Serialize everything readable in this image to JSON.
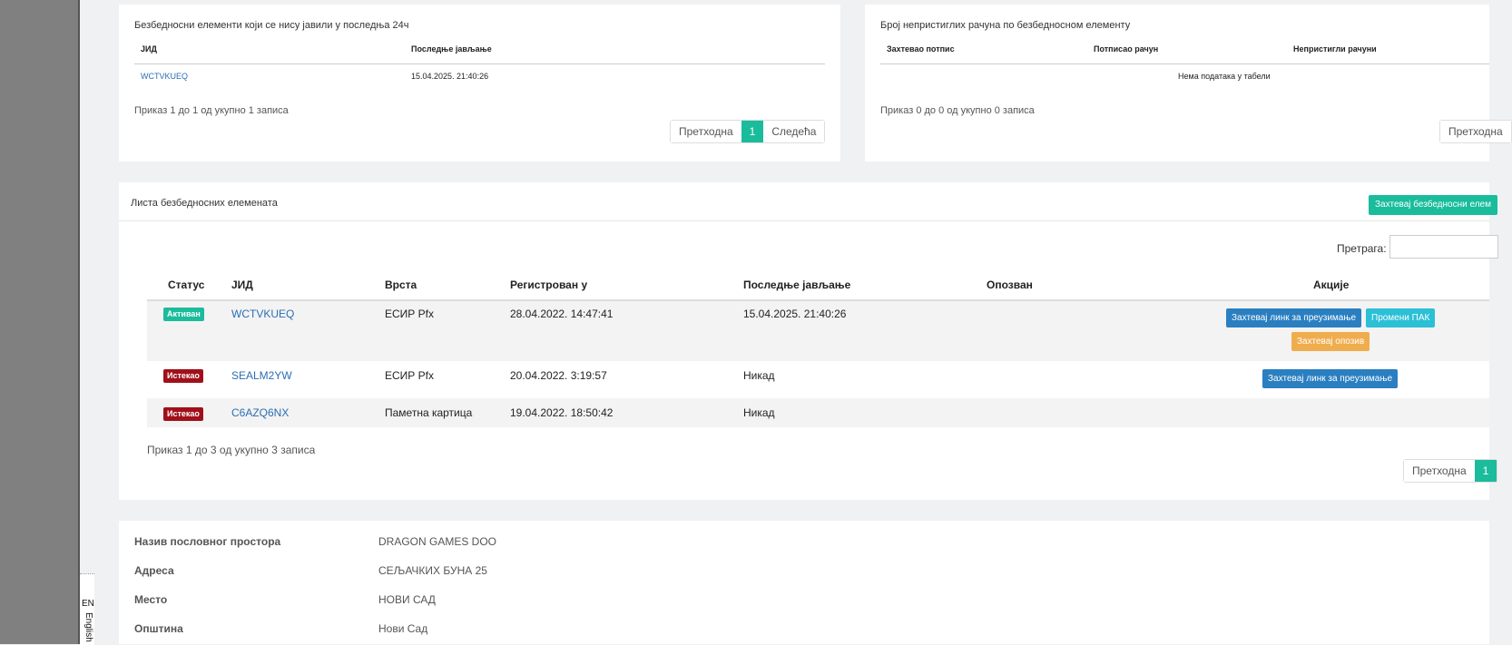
{
  "lang": {
    "code": "EN",
    "name": "English"
  },
  "silent_elements": {
    "title": "Безбедносни елементи који се нису јавили у последња 24ч",
    "columns": [
      "ЈИД",
      "Последње јављање"
    ],
    "rows": [
      {
        "jid": "WCTVKUEQ",
        "last": "15.04.2025. 21:40:26"
      }
    ],
    "info": "Приказ 1 до 1 од укупно 1 записа",
    "pager": {
      "prev": "Претходна",
      "page": "1",
      "next": "Следећа"
    }
  },
  "unsent_invoices": {
    "title": "Број непристиглих рачуна по безбедносном елементу",
    "columns": [
      "Захтевао потпис",
      "Потписао рачун",
      "Непристигли рачуни"
    ],
    "empty": "Нема података у табели",
    "info": "Приказ 0 до 0 од укупно 0 записа",
    "pager": {
      "prev": "Претходна"
    }
  },
  "elements_list": {
    "heading": "Листа безбедносних елемената",
    "request_button": "Захтевај безбедносни елем",
    "search_label": "Претрага:",
    "search_value": "",
    "columns": {
      "status": "Статус",
      "jid": "ЈИД",
      "type": "Врста",
      "registered": "Регистрован у",
      "last": "Последње јављање",
      "revoked": "Опозван",
      "actions": "Акције"
    },
    "rows": [
      {
        "status": "Активан",
        "status_color": "#1abc9c",
        "jid": "WCTVKUEQ",
        "type": "ЕСИР Pfx",
        "registered": "28.04.2022. 14:47:41",
        "last": "15.04.2025. 21:40:26",
        "revoked": "",
        "action_link": "Захтевај линк за преузимање",
        "action_pak": "Промени ПАК",
        "action_revoke": "Захтевај опозив"
      },
      {
        "status": "Истекао",
        "status_color": "#a0101a",
        "jid": "SEALM2YW",
        "type": "ЕСИР Pfx",
        "registered": "20.04.2022. 3:19:57",
        "last": "Никад",
        "revoked": "",
        "action_link": "Захтевај линк за преузимање"
      },
      {
        "status": "Истекао",
        "status_color": "#a0101a",
        "jid": "C6AZQ6NX",
        "type": "Паметна картица",
        "registered": "19.04.2022. 18:50:42",
        "last": "Никад",
        "revoked": ""
      }
    ],
    "info": "Приказ 1 до 3 од укупно 3 записа",
    "pager": {
      "prev": "Претходна",
      "page": "1"
    }
  },
  "business_space": {
    "fields": [
      {
        "label": "Назив пословног простора",
        "value": "DRAGON GAMES DOO"
      },
      {
        "label": "Адреса",
        "value": "СЕЉАЧКИХ БУНА 25"
      },
      {
        "label": "Место",
        "value": "НОВИ САД"
      },
      {
        "label": "Општина",
        "value": "Нови Сад"
      }
    ]
  },
  "colors": {
    "accent": "#1abc9c",
    "primary": "#2a7fc1",
    "info": "#2bc0d6",
    "warning": "#f0ad4e",
    "danger": "#a0101a"
  }
}
